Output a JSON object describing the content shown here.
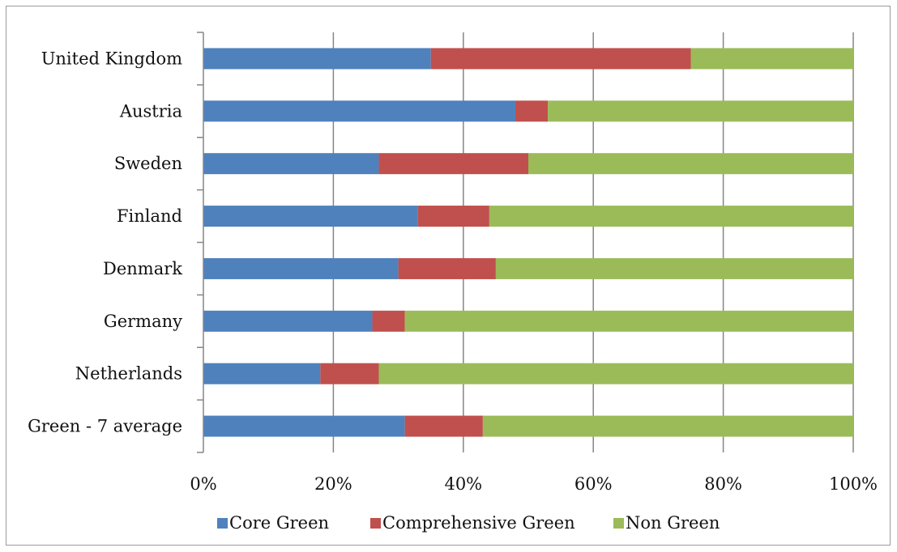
{
  "chart_data": {
    "type": "bar",
    "orientation": "horizontal",
    "stacking": "percent",
    "categories": [
      "United Kingdom",
      "Austria",
      "Sweden",
      "Finland",
      "Denmark",
      "Germany",
      "Netherlands",
      "Green - 7 average"
    ],
    "series": [
      {
        "name": "Core Green",
        "color": "#4f81bd",
        "values": [
          35,
          48,
          27,
          33,
          30,
          26,
          18,
          31
        ]
      },
      {
        "name": "Comprehensive Green",
        "color": "#c0504d",
        "values": [
          40,
          5,
          23,
          11,
          15,
          5,
          9,
          12
        ]
      },
      {
        "name": "Non Green",
        "color": "#9bbb59",
        "values": [
          25,
          47,
          50,
          56,
          55,
          69,
          73,
          57
        ]
      }
    ],
    "x_ticks": [
      "0%",
      "20%",
      "40%",
      "60%",
      "80%",
      "100%"
    ],
    "xlim": [
      0,
      100
    ],
    "grid": "vertical",
    "legend_position": "bottom"
  }
}
